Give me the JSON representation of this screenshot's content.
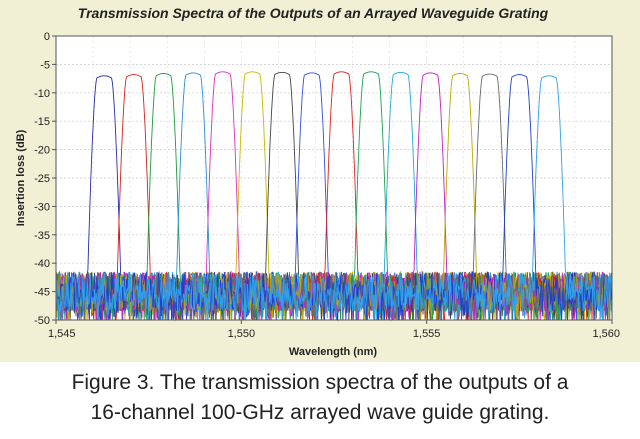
{
  "chart_data": {
    "type": "line",
    "title": "Transmission Spectra of the Outputs of an Arrayed Waveguide Grating",
    "xlabel": "Wavelength (nm)",
    "ylabel": "Insertion loss (dB)",
    "xlim": [
      1545,
      1560
    ],
    "ylim": [
      -50,
      0
    ],
    "xticks": [
      1545,
      1550,
      1555,
      1560
    ],
    "xtick_labels": [
      "1,545",
      "1,550",
      "1,555",
      "1,560"
    ],
    "yticks": [
      0,
      -5,
      -10,
      -15,
      -20,
      -25,
      -30,
      -35,
      -40,
      -45,
      -50
    ],
    "ytick_labels": [
      "0",
      "-5",
      "-10",
      "-15",
      "-20",
      "-25",
      "-30",
      "-35",
      "-40",
      "-45",
      "-50"
    ],
    "grid": true,
    "legend": "none",
    "series": [
      {
        "center": 1546.3,
        "peak": -7.0,
        "color": "#2a2aa8"
      },
      {
        "center": 1547.1,
        "peak": -6.8,
        "color": "#d42020"
      },
      {
        "center": 1547.9,
        "peak": -6.6,
        "color": "#1f9a3a"
      },
      {
        "center": 1548.7,
        "peak": -6.5,
        "color": "#2a8fd6"
      },
      {
        "center": 1549.5,
        "peak": -6.3,
        "color": "#d830c8"
      },
      {
        "center": 1550.3,
        "peak": -6.3,
        "color": "#c8b800"
      },
      {
        "center": 1551.1,
        "peak": -6.4,
        "color": "#444444"
      },
      {
        "center": 1551.9,
        "peak": -6.5,
        "color": "#3050e0"
      },
      {
        "center": 1552.7,
        "peak": -6.3,
        "color": "#e02020"
      },
      {
        "center": 1553.5,
        "peak": -6.3,
        "color": "#1aa050"
      },
      {
        "center": 1554.3,
        "peak": -6.4,
        "color": "#20a8e0"
      },
      {
        "center": 1555.1,
        "peak": -6.5,
        "color": "#c020c0"
      },
      {
        "center": 1555.9,
        "peak": -6.6,
        "color": "#c0a800"
      },
      {
        "center": 1556.7,
        "peak": -6.7,
        "color": "#6a6a6a"
      },
      {
        "center": 1557.5,
        "peak": -6.8,
        "color": "#2040c8"
      },
      {
        "center": 1558.3,
        "peak": -7.0,
        "color": "#30a0e8"
      }
    ],
    "passband_halfwidth_nm": 0.36,
    "noise_floor_db": -45
  },
  "caption": {
    "line1": "Figure 3. The transmission spectra of the outputs of a",
    "line2": "16-channel 100-GHz arrayed wave guide grating."
  }
}
